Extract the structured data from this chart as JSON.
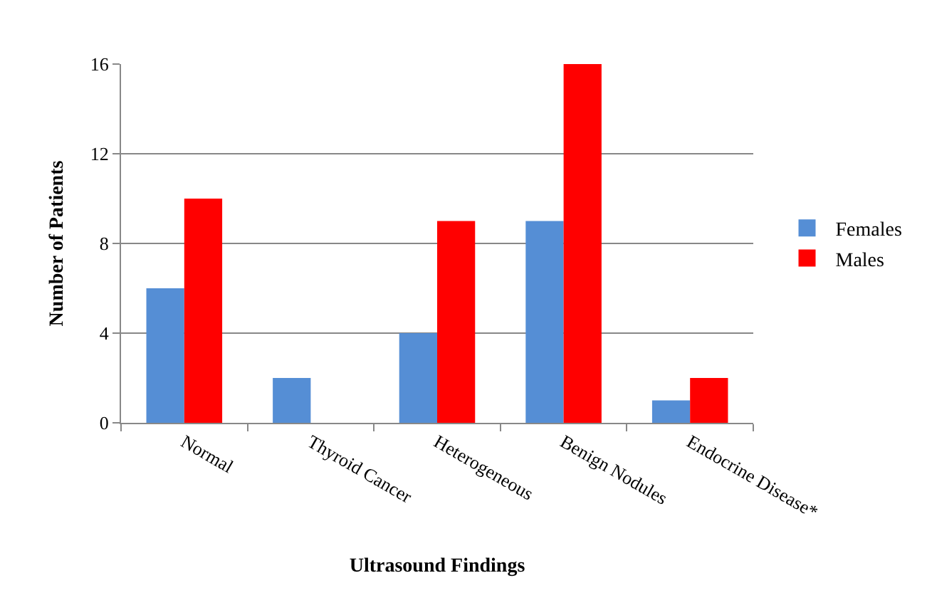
{
  "chart_data": {
    "type": "bar",
    "xlabel": "Ultrasound Findings",
    "ylabel": "Number of Patients",
    "categories": [
      "Normal",
      "Thyroid Cancer",
      "Heterogeneous",
      "Benign Nodules",
      "Endocrine Disease*"
    ],
    "series": [
      {
        "name": "Females",
        "color": "#558ed5",
        "values": [
          6,
          2,
          4,
          9,
          1
        ]
      },
      {
        "name": "Males",
        "color": "#ff0000",
        "values": [
          10,
          0,
          9,
          16,
          2
        ]
      }
    ],
    "ylim": [
      0,
      16
    ],
    "yticks": [
      0,
      4,
      8,
      12,
      16
    ],
    "grid": "y",
    "legend": "right"
  }
}
